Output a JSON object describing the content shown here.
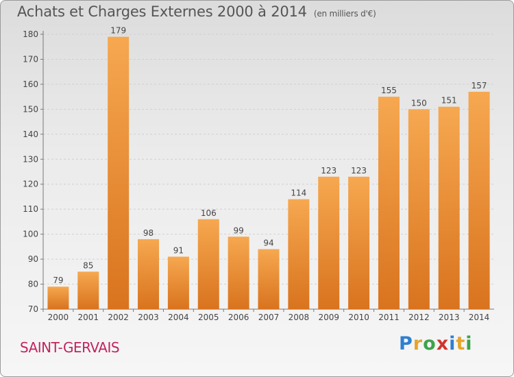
{
  "header": {
    "title": "Achats et Charges Externes 2000 à 2014",
    "subtitle": "(en milliers d'€)"
  },
  "footer": {
    "place": "SAINT-GERVAIS",
    "brand_letters": [
      "P",
      "r",
      "o",
      "x",
      "i",
      "t",
      "i"
    ],
    "brand_colors": [
      "#2f7fd0",
      "#e5a52a",
      "#3ca34a",
      "#d0342c",
      "#2f7fd0",
      "#e5a52a",
      "#3ca34a"
    ]
  },
  "chart_data": {
    "type": "bar",
    "title": "Achats et Charges Externes 2000 à 2014",
    "subtitle": "(en milliers d'€)",
    "categories": [
      "2000",
      "2001",
      "2002",
      "2003",
      "2004",
      "2005",
      "2006",
      "2007",
      "2008",
      "2009",
      "2010",
      "2011",
      "2012",
      "2013",
      "2014"
    ],
    "values": [
      79,
      85,
      179,
      98,
      91,
      106,
      99,
      94,
      114,
      123,
      123,
      155,
      150,
      151,
      157
    ],
    "ylim": [
      70,
      180
    ],
    "yticks": [
      70,
      80,
      90,
      100,
      110,
      120,
      130,
      140,
      150,
      160,
      170,
      180
    ],
    "grid": true,
    "bar_color_top": "#f6a850",
    "bar_color_bottom": "#d9731e"
  }
}
